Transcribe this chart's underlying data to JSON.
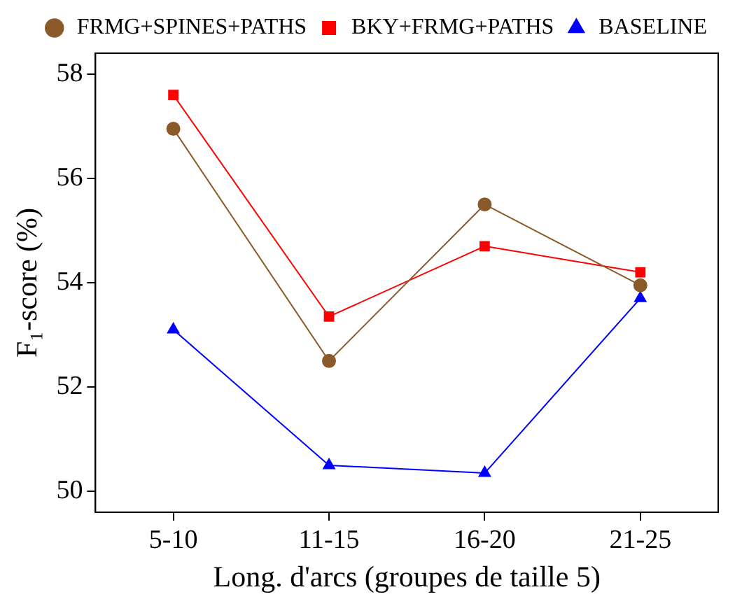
{
  "chart_data": {
    "type": "line",
    "xlabel": "Long. d'arcs (groupes de taille 5)",
    "ylabel": "F₁-score (%)",
    "categories": [
      "5-10",
      "11-15",
      "16-20",
      "21-25"
    ],
    "series": [
      {
        "name": "FRMG+SPINES+PATHS",
        "color": "#8b5a2b",
        "marker": "circle",
        "values": [
          56.95,
          52.5,
          55.5,
          53.95
        ]
      },
      {
        "name": "BKY+FRMG+PATHS",
        "color": "#ff0000",
        "marker": "square",
        "values": [
          57.6,
          53.35,
          54.7,
          54.2
        ]
      },
      {
        "name": "BASELINE",
        "color": "#0000ff",
        "marker": "triangle",
        "values": [
          53.1,
          50.5,
          50.35,
          53.7
        ]
      }
    ],
    "ylim": [
      49.6,
      58.4
    ],
    "yticks": [
      50,
      52,
      54,
      56,
      58
    ],
    "grid": false,
    "legend": "top right"
  }
}
